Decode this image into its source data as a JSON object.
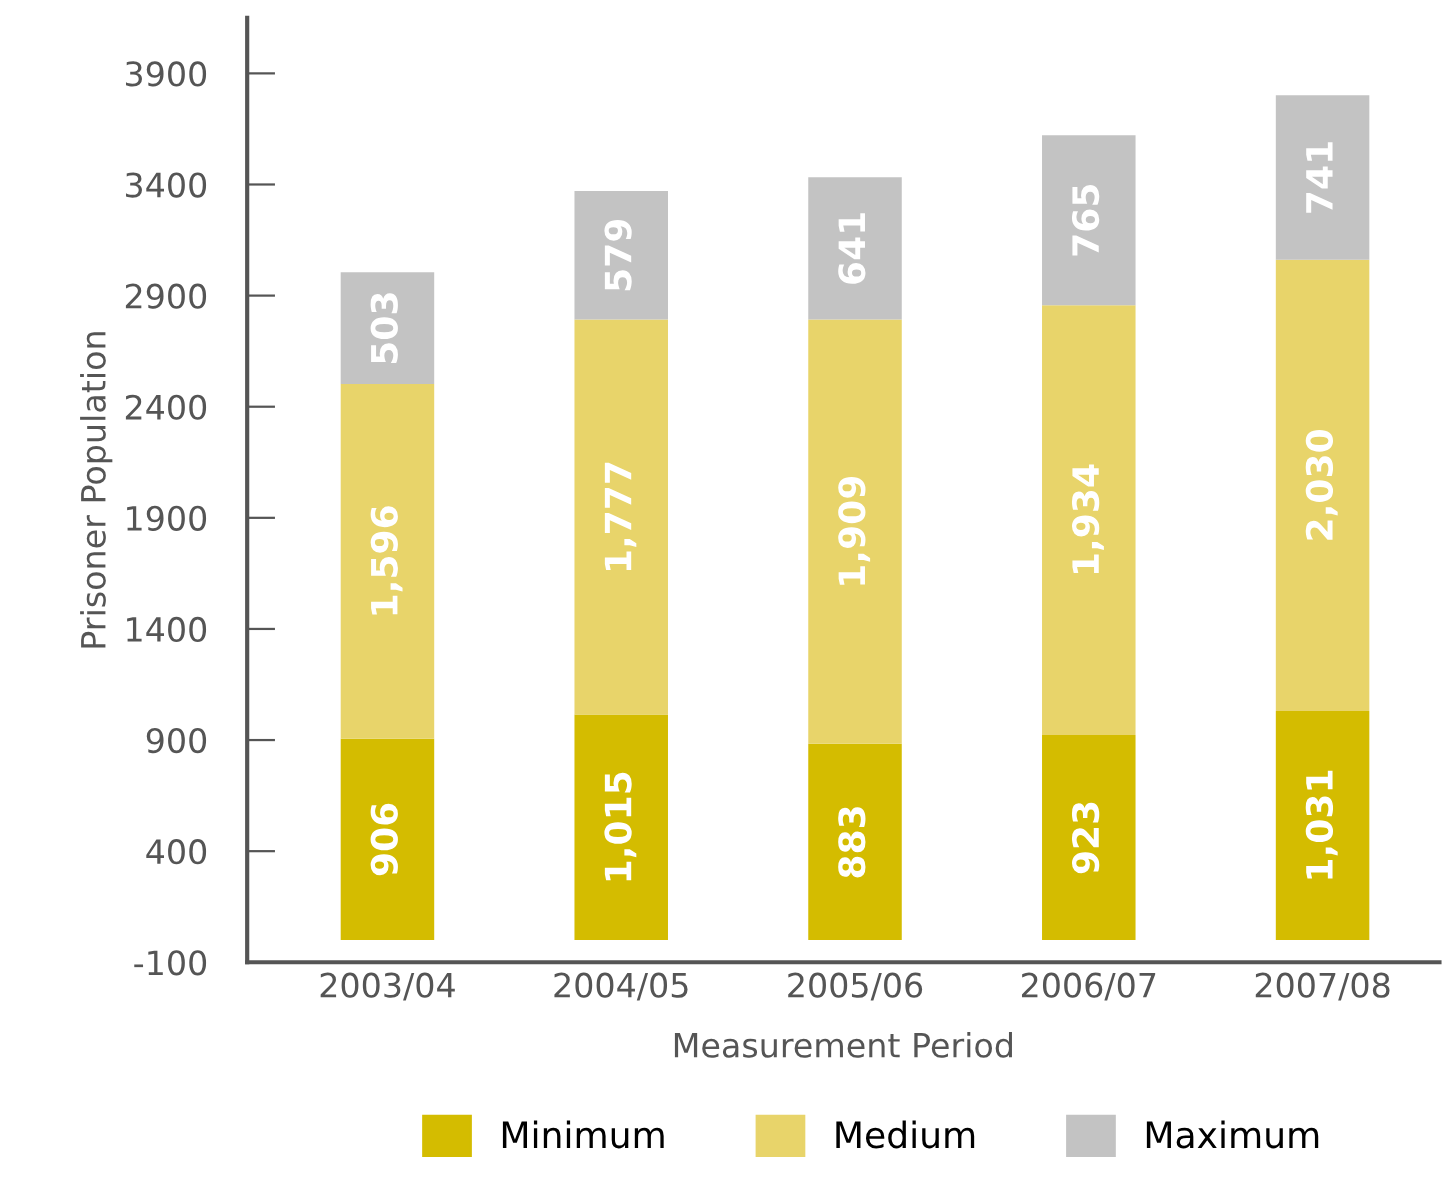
{
  "chart_data": {
    "type": "bar",
    "stacked": true,
    "xlabel": "Measurement Period",
    "ylabel": "Prisoner Population",
    "categories": [
      "2003/04",
      "2004/05",
      "2005/06",
      "2006/07",
      "2007/08"
    ],
    "series": [
      {
        "name": "Minimum",
        "color": "#d4bc00",
        "values": [
          906,
          1015,
          883,
          923,
          1031
        ],
        "value_labels": [
          "906",
          "1,015",
          "883",
          "923",
          "1,031"
        ]
      },
      {
        "name": "Medium",
        "color": "#e8d46a",
        "values": [
          1596,
          1777,
          1909,
          1934,
          2030
        ],
        "value_labels": [
          "1,596",
          "1,777",
          "1,909",
          "1,934",
          "2,030"
        ]
      },
      {
        "name": "Maximum",
        "color": "#c3c3c3",
        "values": [
          503,
          579,
          641,
          765,
          741
        ],
        "value_labels": [
          "503",
          "579",
          "641",
          "765",
          "741"
        ]
      }
    ],
    "ylim": [
      -100,
      4150
    ],
    "yticks": [
      -100,
      400,
      900,
      1400,
      1900,
      2400,
      2900,
      3400,
      3900
    ],
    "grid": false,
    "legend": "bottom"
  }
}
